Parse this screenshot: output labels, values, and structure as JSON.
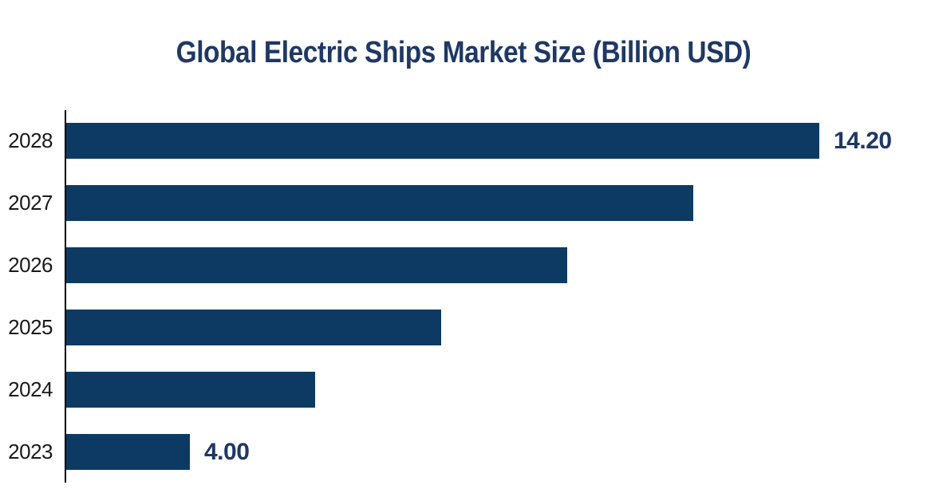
{
  "chart_data": {
    "type": "bar",
    "orientation": "horizontal",
    "title": "Global Electric Ships Market Size (Billion USD)",
    "categories": [
      "2028",
      "2027",
      "2026",
      "2025",
      "2024",
      "2023"
    ],
    "values": [
      14.2,
      12.16,
      10.12,
      8.08,
      6.04,
      4.0
    ],
    "value_labels": {
      "2028": "14.20",
      "2023": "4.00"
    },
    "xlabel": "",
    "ylabel": "",
    "xlim": [
      2,
      15.9
    ],
    "grid": false,
    "legend": false,
    "colors": {
      "bar": "#0D3A63",
      "title": "#1F3864",
      "value_label": "#1F3864",
      "category_label": "#1A1A1A",
      "axis": "#000000",
      "background": "#FFFFFF"
    }
  }
}
